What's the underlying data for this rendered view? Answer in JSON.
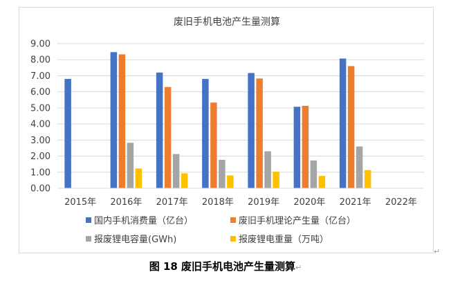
{
  "figure": {
    "caption": "图 18  废旧手机电池产生量测算",
    "return_mark": "↵"
  },
  "chart_data": {
    "type": "bar",
    "title": "废旧手机电池产生量测算",
    "xlabel": "",
    "ylabel": "",
    "categories": [
      "2015年",
      "2016年",
      "2017年",
      "2018年",
      "2019年",
      "2020年",
      "2021年",
      "2022年"
    ],
    "ylim": [
      0,
      9
    ],
    "yticks": [
      "0.00",
      "1.00",
      "2.00",
      "3.00",
      "4.00",
      "5.00",
      "6.00",
      "7.00",
      "8.00",
      "9.00"
    ],
    "grid": true,
    "legend_position": "bottom",
    "series": [
      {
        "name": "国内手机消费量（亿台）",
        "color": "#4472c4",
        "values": [
          6.8,
          8.47,
          7.2,
          6.8,
          7.17,
          5.07,
          8.07,
          null
        ]
      },
      {
        "name": "废旧手机理论产生量（亿台）",
        "color": "#ed7d31",
        "values": [
          null,
          8.33,
          6.3,
          5.33,
          6.83,
          5.13,
          7.6,
          null
        ]
      },
      {
        "name": "报废锂电容量(GWh)",
        "color": "#a5a5a5",
        "values": [
          null,
          2.83,
          2.13,
          1.77,
          2.3,
          1.73,
          2.6,
          null
        ]
      },
      {
        "name": "报废锂电重量（万吨）",
        "color": "#ffc000",
        "values": [
          null,
          1.23,
          0.93,
          0.8,
          1.03,
          0.77,
          1.13,
          null
        ]
      }
    ]
  }
}
